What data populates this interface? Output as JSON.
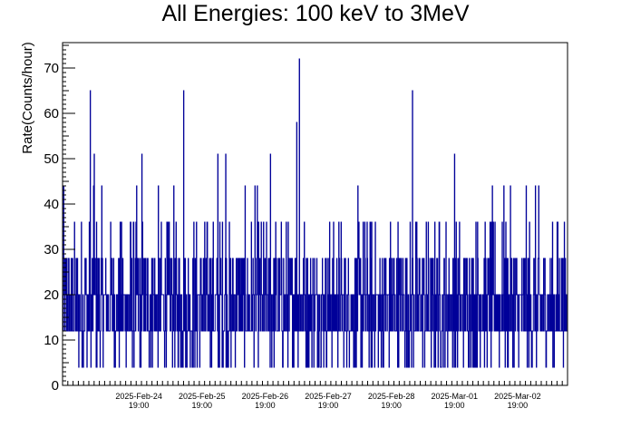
{
  "chart_data": {
    "type": "line",
    "title": "All Energies:  100 keV to 3MeV",
    "xlabel": "",
    "ylabel": "Rate(Counts/hour)",
    "ylim": [
      0,
      75.6
    ],
    "y_ticks": [
      0,
      10,
      20,
      30,
      40,
      50,
      60,
      70
    ],
    "x_range_days": [
      "2025-Feb-23 14:00",
      "2025-Mar-03 14:00"
    ],
    "x_ticks": [
      {
        "date": "2025-Feb-24",
        "time": "19:00"
      },
      {
        "date": "2025-Feb-25",
        "time": "19:00"
      },
      {
        "date": "2025-Feb-26",
        "time": "19:00"
      },
      {
        "date": "2025-Feb-27",
        "time": "19:00"
      },
      {
        "date": "2025-Feb-28",
        "time": "19:00"
      },
      {
        "date": "2025-Mar-01",
        "time": "19:00"
      },
      {
        "date": "2025-Mar-02",
        "time": "19:00"
      }
    ],
    "bin_minutes": 7.5,
    "series": [
      {
        "color": "#000099",
        "style": "step",
        "baseline_range": [
          4,
          36
        ],
        "peaks": [
          {
            "time": "2025-Feb-24 00:30",
            "value": 65
          },
          {
            "time": "2025-Feb-24 02:00",
            "value": 51
          },
          {
            "time": "2025-Feb-24 20:10",
            "value": 51
          },
          {
            "time": "2025-Feb-25 12:00",
            "value": 65
          },
          {
            "time": "2025-Feb-26 01:00",
            "value": 51
          },
          {
            "time": "2025-Feb-26 04:00",
            "value": 51
          },
          {
            "time": "2025-Feb-26 21:00",
            "value": 51
          },
          {
            "time": "2025-Feb-27 07:00",
            "value": 58
          },
          {
            "time": "2025-Feb-27 08:00",
            "value": 72
          },
          {
            "time": "2025-Mar-01 03:00",
            "value": 65
          },
          {
            "time": "2025-Mar-01 19:00",
            "value": 51
          }
        ]
      }
    ]
  }
}
